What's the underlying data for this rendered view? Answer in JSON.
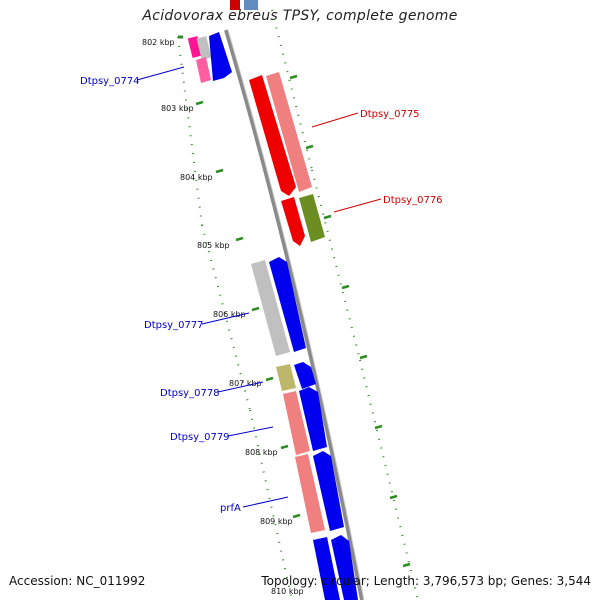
{
  "title": "Acidovorax ebreus TPSY, complete genome",
  "accession": "Accession: NC_011992",
  "summary": "Topology: circular; Length: 3,796,573 bp; Genes: 3,544",
  "kbp_labels": [
    "802 kbp",
    "803 kbp",
    "804 kbp",
    "805 kbp",
    "806 kbp",
    "807 kbp",
    "808 kbp",
    "809 kbp",
    "810 kbp"
  ],
  "genes": {
    "g0774": {
      "label": "Dtpsy_0774",
      "color": "#0000cc"
    },
    "g0775": {
      "label": "Dtpsy_0775",
      "color": "#cc0000"
    },
    "g0776": {
      "label": "Dtpsy_0776",
      "color": "#cc0000"
    },
    "g0777": {
      "label": "Dtpsy_0777",
      "color": "#0000cc"
    },
    "g0778": {
      "label": "Dtpsy_0778",
      "color": "#0000cc"
    },
    "g0779": {
      "label": "Dtpsy_0779",
      "color": "#0000cc"
    },
    "prfA": {
      "label": "prfA",
      "color": "#0000cc"
    }
  },
  "colors": {
    "backbone": "#8a8a8a",
    "forward_cds": "#0000ee",
    "reverse_cds": "#ee0000",
    "tick_green": "#2e8b22",
    "cog_pink": "#f08080",
    "cog_gray": "#c0c0c0",
    "cog_olive": "#6b8e23",
    "cog_khaki": "#bdb76b",
    "cog_magenta": "#ff1493"
  }
}
